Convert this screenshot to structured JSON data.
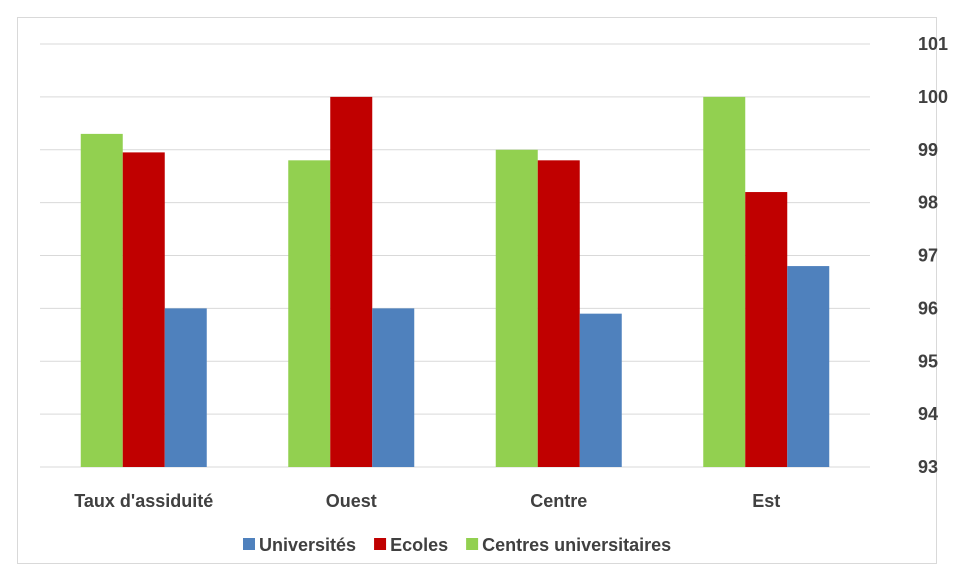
{
  "chart_data": {
    "type": "bar",
    "categories": [
      "Taux d'assiduité",
      "Ouest",
      "Centre",
      "Est"
    ],
    "series": [
      {
        "name": "Centres universitaires",
        "color": "#92d050",
        "values": [
          99.3,
          98.8,
          99.0,
          100.0
        ]
      },
      {
        "name": "Ecoles",
        "color": "#c00000",
        "values": [
          98.95,
          100.0,
          98.8,
          98.2
        ]
      },
      {
        "name": "Universités",
        "color": "#4f81bd",
        "values": [
          96.0,
          96.0,
          95.9,
          96.8
        ]
      }
    ],
    "legend_order": [
      "Universités",
      "Ecoles",
      "Centres universitaires"
    ],
    "ylim": [
      93,
      101
    ],
    "yticks": [
      93,
      94,
      95,
      96,
      97,
      98,
      99,
      100,
      101
    ],
    "y_axis_position": "right",
    "legend_position": "bottom",
    "grid": true,
    "gridline_color": "#d9d9d9"
  }
}
